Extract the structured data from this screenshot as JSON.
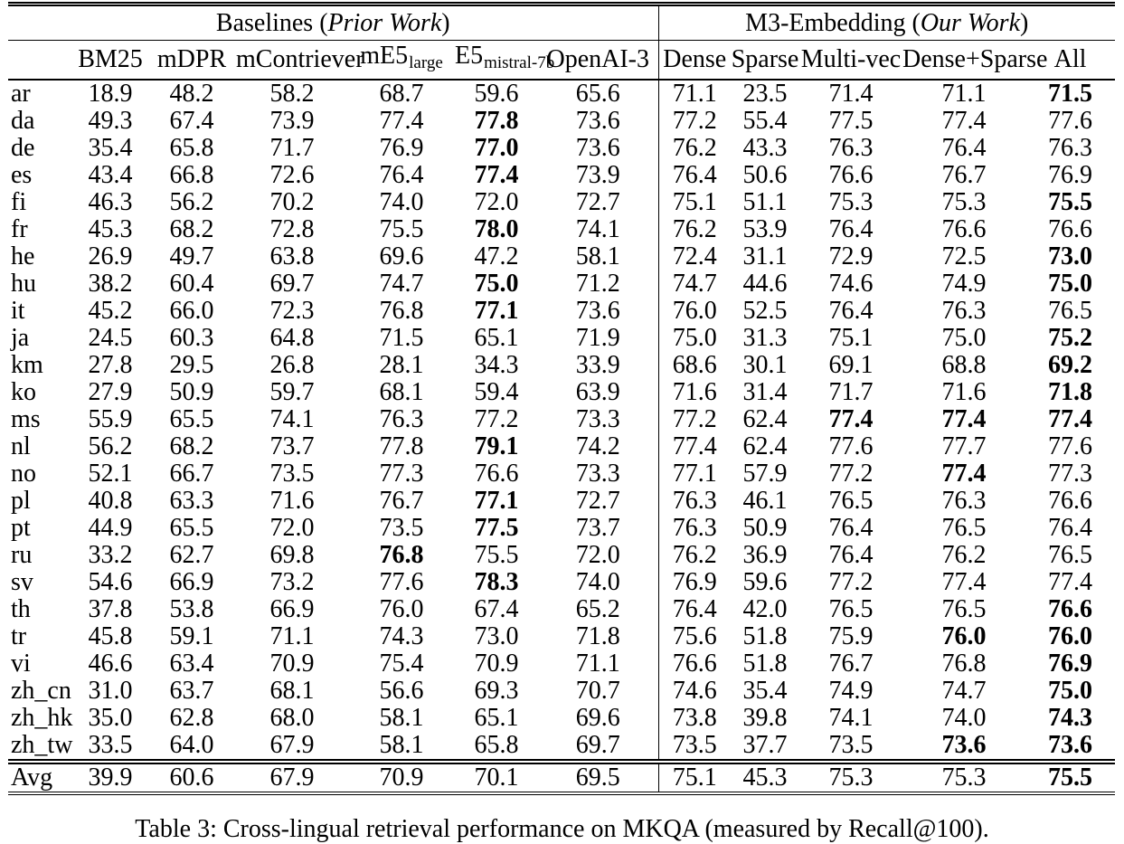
{
  "page": {
    "background": "#ffffff",
    "text_color": "#000000"
  },
  "table": {
    "group_headers": [
      {
        "prefix": "Baselines (",
        "italic": "Prior Work",
        "suffix": ")"
      },
      {
        "prefix": "M3-Embedding (",
        "italic": "Our Work",
        "suffix": ")"
      }
    ],
    "column_headers": [
      {
        "main": "BM25",
        "sub": ""
      },
      {
        "main": "mDPR",
        "sub": ""
      },
      {
        "main": "mContriever",
        "sub": ""
      },
      {
        "main": "mE5",
        "sub": "large"
      },
      {
        "main": "E5",
        "sub": "mistral-7b"
      },
      {
        "main": "OpenAI-3",
        "sub": ""
      },
      {
        "main": "Dense",
        "sub": ""
      },
      {
        "main": "Sparse",
        "sub": ""
      },
      {
        "main": "Multi-vec",
        "sub": ""
      },
      {
        "main": "Dense+Sparse",
        "sub": ""
      },
      {
        "main": "All",
        "sub": ""
      }
    ],
    "rows": [
      {
        "lang": "ar",
        "values": [
          "18.9",
          "48.2",
          "58.2",
          "68.7",
          "59.6",
          "65.6",
          "71.1",
          "23.5",
          "71.4",
          "71.1",
          "71.5"
        ],
        "bold": [
          10
        ],
        "is_avg": false
      },
      {
        "lang": "da",
        "values": [
          "49.3",
          "67.4",
          "73.9",
          "77.4",
          "77.8",
          "73.6",
          "77.2",
          "55.4",
          "77.5",
          "77.4",
          "77.6"
        ],
        "bold": [
          4
        ],
        "is_avg": false
      },
      {
        "lang": "de",
        "values": [
          "35.4",
          "65.8",
          "71.7",
          "76.9",
          "77.0",
          "73.6",
          "76.2",
          "43.3",
          "76.3",
          "76.4",
          "76.3"
        ],
        "bold": [
          4
        ],
        "is_avg": false
      },
      {
        "lang": "es",
        "values": [
          "43.4",
          "66.8",
          "72.6",
          "76.4",
          "77.4",
          "73.9",
          "76.4",
          "50.6",
          "76.6",
          "76.7",
          "76.9"
        ],
        "bold": [
          4
        ],
        "is_avg": false
      },
      {
        "lang": "fi",
        "values": [
          "46.3",
          "56.2",
          "70.2",
          "74.0",
          "72.0",
          "72.7",
          "75.1",
          "51.1",
          "75.3",
          "75.3",
          "75.5"
        ],
        "bold": [
          10
        ],
        "is_avg": false
      },
      {
        "lang": "fr",
        "values": [
          "45.3",
          "68.2",
          "72.8",
          "75.5",
          "78.0",
          "74.1",
          "76.2",
          "53.9",
          "76.4",
          "76.6",
          "76.6"
        ],
        "bold": [
          4
        ],
        "is_avg": false
      },
      {
        "lang": "he",
        "values": [
          "26.9",
          "49.7",
          "63.8",
          "69.6",
          "47.2",
          "58.1",
          "72.4",
          "31.1",
          "72.9",
          "72.5",
          "73.0"
        ],
        "bold": [
          10
        ],
        "is_avg": false
      },
      {
        "lang": "hu",
        "values": [
          "38.2",
          "60.4",
          "69.7",
          "74.7",
          "75.0",
          "71.2",
          "74.7",
          "44.6",
          "74.6",
          "74.9",
          "75.0"
        ],
        "bold": [
          4,
          10
        ],
        "is_avg": false
      },
      {
        "lang": "it",
        "values": [
          "45.2",
          "66.0",
          "72.3",
          "76.8",
          "77.1",
          "73.6",
          "76.0",
          "52.5",
          "76.4",
          "76.3",
          "76.5"
        ],
        "bold": [
          4
        ],
        "is_avg": false
      },
      {
        "lang": "ja",
        "values": [
          "24.5",
          "60.3",
          "64.8",
          "71.5",
          "65.1",
          "71.9",
          "75.0",
          "31.3",
          "75.1",
          "75.0",
          "75.2"
        ],
        "bold": [
          10
        ],
        "is_avg": false
      },
      {
        "lang": "km",
        "values": [
          "27.8",
          "29.5",
          "26.8",
          "28.1",
          "34.3",
          "33.9",
          "68.6",
          "30.1",
          "69.1",
          "68.8",
          "69.2"
        ],
        "bold": [
          10
        ],
        "is_avg": false
      },
      {
        "lang": "ko",
        "values": [
          "27.9",
          "50.9",
          "59.7",
          "68.1",
          "59.4",
          "63.9",
          "71.6",
          "31.4",
          "71.7",
          "71.6",
          "71.8"
        ],
        "bold": [
          10
        ],
        "is_avg": false
      },
      {
        "lang": "ms",
        "values": [
          "55.9",
          "65.5",
          "74.1",
          "76.3",
          "77.2",
          "73.3",
          "77.2",
          "62.4",
          "77.4",
          "77.4",
          "77.4"
        ],
        "bold": [
          8,
          9,
          10
        ],
        "is_avg": false
      },
      {
        "lang": "nl",
        "values": [
          "56.2",
          "68.2",
          "73.7",
          "77.8",
          "79.1",
          "74.2",
          "77.4",
          "62.4",
          "77.6",
          "77.7",
          "77.6"
        ],
        "bold": [
          4
        ],
        "is_avg": false
      },
      {
        "lang": "no",
        "values": [
          "52.1",
          "66.7",
          "73.5",
          "77.3",
          "76.6",
          "73.3",
          "77.1",
          "57.9",
          "77.2",
          "77.4",
          "77.3"
        ],
        "bold": [
          9
        ],
        "is_avg": false
      },
      {
        "lang": "pl",
        "values": [
          "40.8",
          "63.3",
          "71.6",
          "76.7",
          "77.1",
          "72.7",
          "76.3",
          "46.1",
          "76.5",
          "76.3",
          "76.6"
        ],
        "bold": [
          4
        ],
        "is_avg": false
      },
      {
        "lang": "pt",
        "values": [
          "44.9",
          "65.5",
          "72.0",
          "73.5",
          "77.5",
          "73.7",
          "76.3",
          "50.9",
          "76.4",
          "76.5",
          "76.4"
        ],
        "bold": [
          4
        ],
        "is_avg": false
      },
      {
        "lang": "ru",
        "values": [
          "33.2",
          "62.7",
          "69.8",
          "76.8",
          "75.5",
          "72.0",
          "76.2",
          "36.9",
          "76.4",
          "76.2",
          "76.5"
        ],
        "bold": [
          3
        ],
        "is_avg": false
      },
      {
        "lang": "sv",
        "values": [
          "54.6",
          "66.9",
          "73.2",
          "77.6",
          "78.3",
          "74.0",
          "76.9",
          "59.6",
          "77.2",
          "77.4",
          "77.4"
        ],
        "bold": [
          4
        ],
        "is_avg": false
      },
      {
        "lang": "th",
        "values": [
          "37.8",
          "53.8",
          "66.9",
          "76.0",
          "67.4",
          "65.2",
          "76.4",
          "42.0",
          "76.5",
          "76.5",
          "76.6"
        ],
        "bold": [
          10
        ],
        "is_avg": false
      },
      {
        "lang": "tr",
        "values": [
          "45.8",
          "59.1",
          "71.1",
          "74.3",
          "73.0",
          "71.8",
          "75.6",
          "51.8",
          "75.9",
          "76.0",
          "76.0"
        ],
        "bold": [
          9,
          10
        ],
        "is_avg": false
      },
      {
        "lang": "vi",
        "values": [
          "46.6",
          "63.4",
          "70.9",
          "75.4",
          "70.9",
          "71.1",
          "76.6",
          "51.8",
          "76.7",
          "76.8",
          "76.9"
        ],
        "bold": [
          10
        ],
        "is_avg": false
      },
      {
        "lang": "zh_cn",
        "values": [
          "31.0",
          "63.7",
          "68.1",
          "56.6",
          "69.3",
          "70.7",
          "74.6",
          "35.4",
          "74.9",
          "74.7",
          "75.0"
        ],
        "bold": [
          10
        ],
        "is_avg": false
      },
      {
        "lang": "zh_hk",
        "values": [
          "35.0",
          "62.8",
          "68.0",
          "58.1",
          "65.1",
          "69.6",
          "73.8",
          "39.8",
          "74.1",
          "74.0",
          "74.3"
        ],
        "bold": [
          10
        ],
        "is_avg": false
      },
      {
        "lang": "zh_tw",
        "values": [
          "33.5",
          "64.0",
          "67.9",
          "58.1",
          "65.8",
          "69.7",
          "73.5",
          "37.7",
          "73.5",
          "73.6",
          "73.6"
        ],
        "bold": [
          9,
          10
        ],
        "is_avg": false
      },
      {
        "lang": "Avg",
        "values": [
          "39.9",
          "60.6",
          "67.9",
          "70.9",
          "70.1",
          "69.5",
          "75.1",
          "45.3",
          "75.3",
          "75.3",
          "75.5"
        ],
        "bold": [
          10
        ],
        "is_avg": true
      }
    ]
  },
  "caption": "Table 3: Cross-lingual retrieval performance on MKQA (measured by Recall@100)."
}
